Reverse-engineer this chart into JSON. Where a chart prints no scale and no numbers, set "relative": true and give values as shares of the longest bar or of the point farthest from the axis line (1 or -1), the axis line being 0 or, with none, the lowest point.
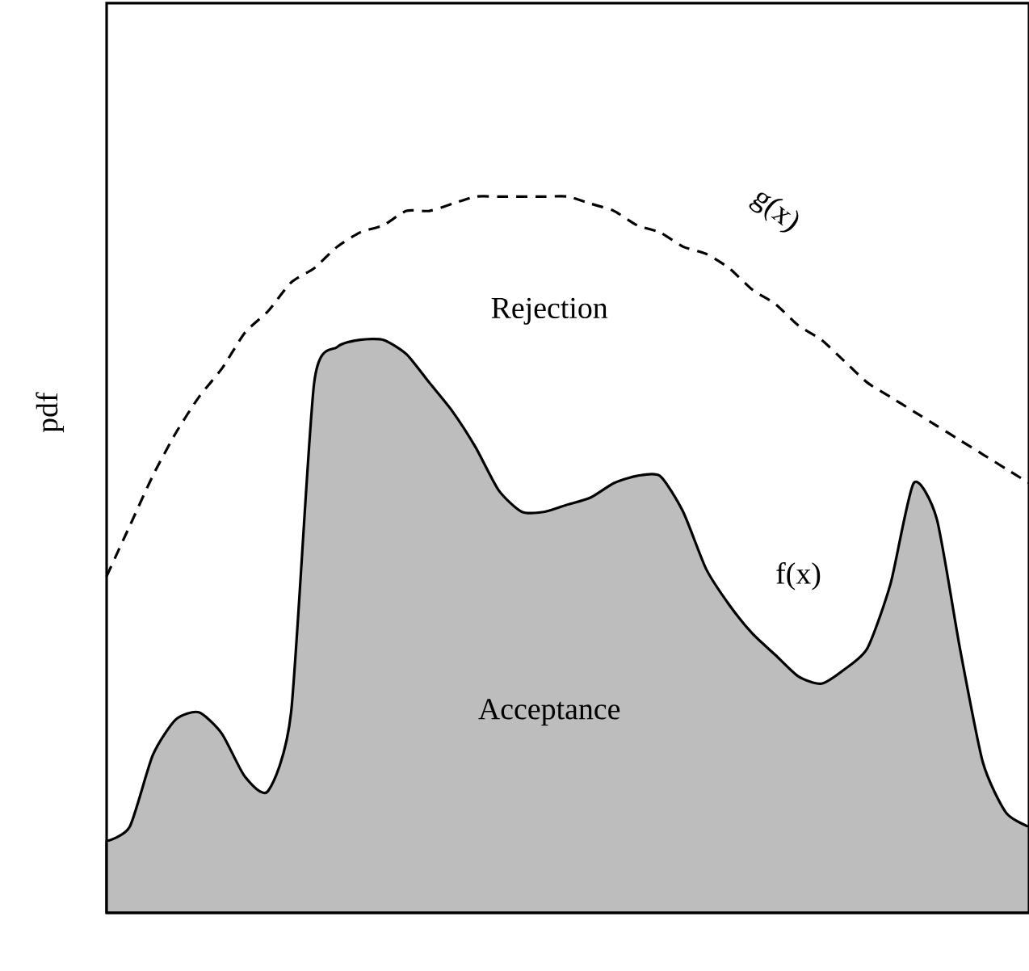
{
  "chart_data": {
    "type": "area",
    "relative": true,
    "ylabel": "pdf",
    "legend": false,
    "annotations": [
      "Rejection",
      "Acceptance"
    ],
    "categories": [
      null,
      null,
      null,
      null,
      null,
      null,
      null,
      null,
      null,
      null,
      null,
      null,
      null,
      null,
      null,
      null,
      null,
      null,
      null,
      null,
      null,
      null,
      null,
      null,
      null,
      null,
      null,
      null,
      null,
      null,
      null,
      null,
      null,
      null,
      null,
      null,
      null,
      null,
      null,
      null,
      null
    ],
    "series": [
      {
        "name": "f(x)",
        "color": "#bdbdbd",
        "values": [
          0.1,
          0.12,
          0.22,
          0.27,
          0.28,
          0.25,
          0.19,
          0.17,
          0.28,
          0.74,
          0.79,
          0.8,
          0.8,
          0.78,
          0.74,
          0.7,
          0.65,
          0.59,
          0.56,
          0.56,
          0.57,
          0.58,
          0.6,
          0.61,
          0.61,
          0.56,
          0.48,
          0.43,
          0.39,
          0.36,
          0.33,
          0.32,
          0.34,
          0.37,
          0.46,
          0.6,
          0.55,
          0.37,
          0.21,
          0.14,
          0.12
        ]
      },
      {
        "name": "g(x)",
        "type": "line",
        "line_style": "dashed",
        "color": "#000000",
        "values": [
          0.47,
          0.54,
          0.61,
          0.67,
          0.72,
          0.76,
          0.81,
          0.84,
          0.88,
          0.9,
          0.93,
          0.95,
          0.96,
          0.98,
          0.98,
          0.99,
          1.0,
          1.0,
          1.0,
          1.0,
          1.0,
          0.99,
          0.98,
          0.96,
          0.95,
          0.93,
          0.92,
          0.9,
          0.87,
          0.85,
          0.82,
          0.8,
          0.77,
          0.74,
          0.72,
          0.7,
          0.68,
          0.66,
          0.64,
          0.62,
          0.6
        ]
      }
    ]
  }
}
